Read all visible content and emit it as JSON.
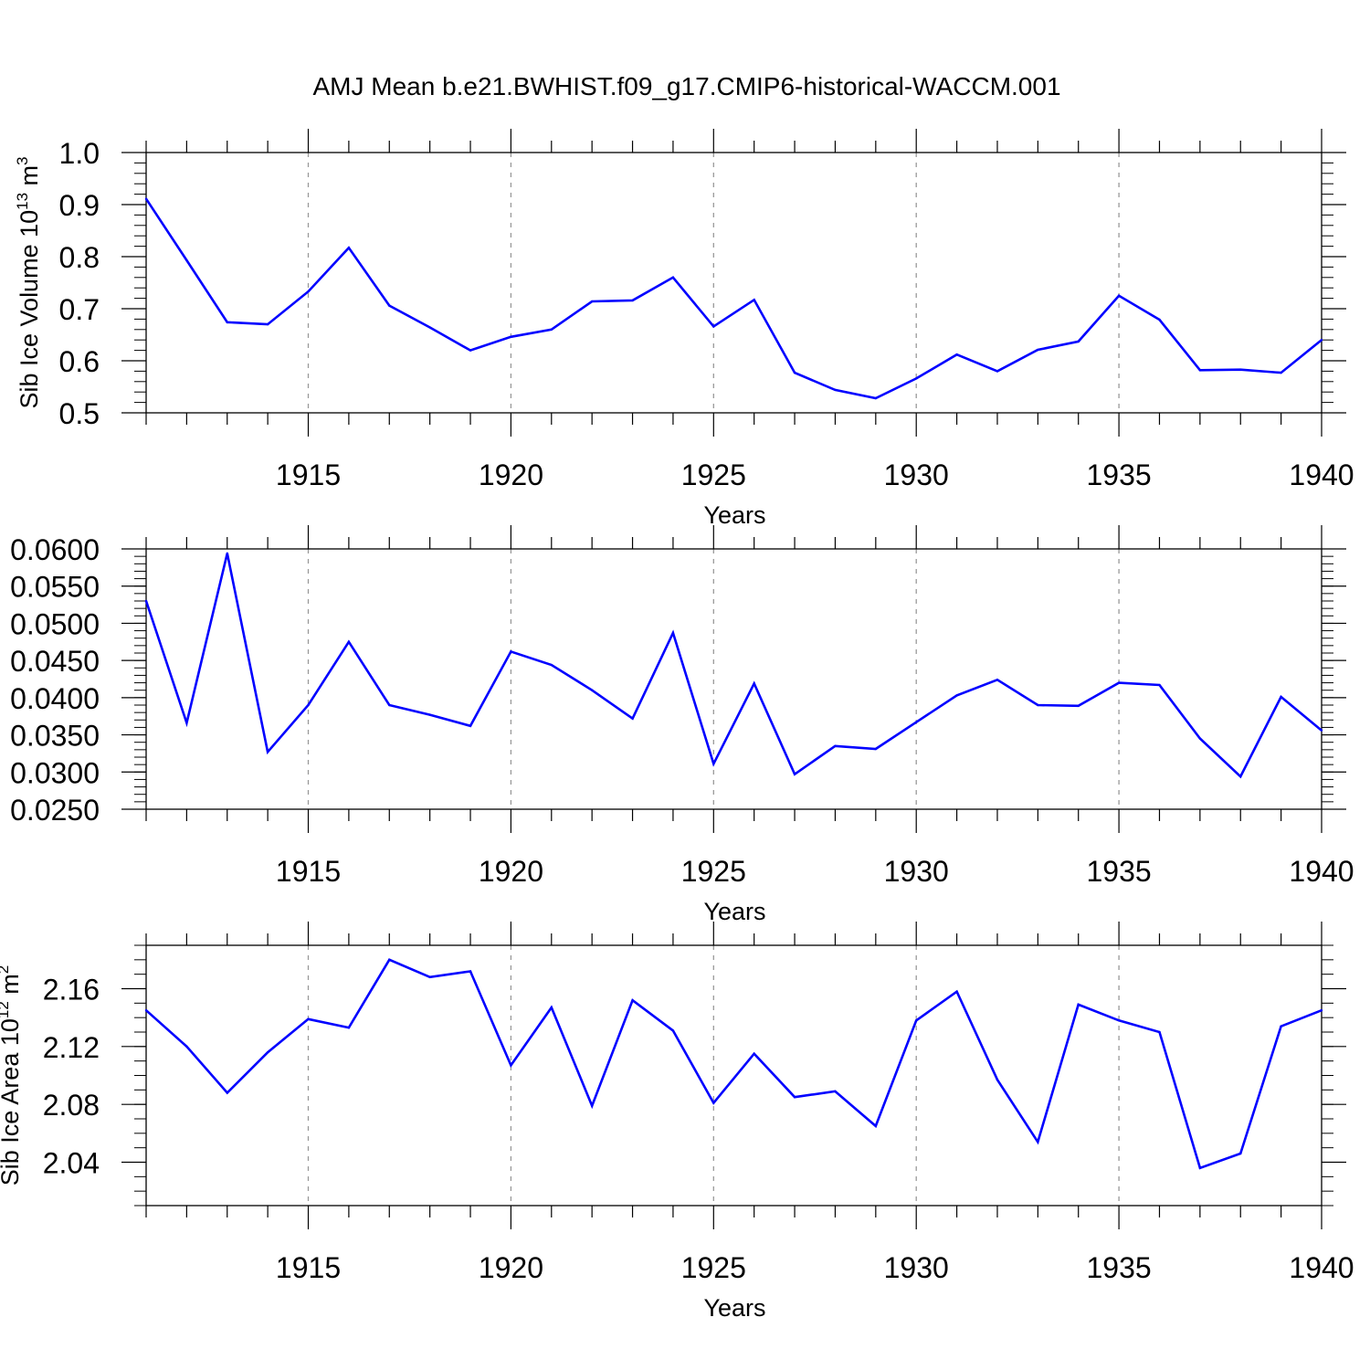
{
  "figure_title": "AMJ Mean b.e21.BWHIST.f09_g17.CMIP6-historical-WACCM.001",
  "colors": {
    "series": "#0000ff",
    "axis": "#000000",
    "gridline": "#999999"
  },
  "chart_data": [
    {
      "type": "line",
      "title": "",
      "xlabel": "Years",
      "ylabel": "Sib Ice Volume 10^13 m^3",
      "ylabel_parts": {
        "main": "Sib Ice Volume 10",
        "exp1": "13",
        "unit": " m",
        "exp2": "3"
      },
      "xlim": [
        1911,
        1940
      ],
      "ylim": [
        0.5,
        1.0
      ],
      "x_ticks": [
        1915,
        1920,
        1925,
        1930,
        1935,
        1940
      ],
      "y_ticks": [
        0.5,
        0.6,
        0.7,
        0.8,
        0.9,
        1.0
      ],
      "y_tick_labels": [
        "0.5",
        "0.6",
        "0.7",
        "0.8",
        "0.9",
        "1.0"
      ],
      "y_minor_step": 0.02,
      "grid": "dashed vertical at major x ticks",
      "x": [
        1911,
        1912,
        1913,
        1914,
        1915,
        1916,
        1917,
        1918,
        1919,
        1920,
        1921,
        1922,
        1923,
        1924,
        1925,
        1926,
        1927,
        1928,
        1929,
        1930,
        1931,
        1932,
        1933,
        1934,
        1935,
        1936,
        1937,
        1938,
        1939,
        1940
      ],
      "values": [
        0.911,
        0.793,
        0.674,
        0.67,
        0.733,
        0.817,
        0.706,
        0.664,
        0.62,
        0.646,
        0.66,
        0.714,
        0.716,
        0.76,
        0.666,
        0.717,
        0.577,
        0.544,
        0.528,
        0.566,
        0.612,
        0.58,
        0.621,
        0.637,
        0.725,
        0.679,
        0.582,
        0.583,
        0.577,
        0.64
      ]
    },
    {
      "type": "line",
      "title": "",
      "xlabel": "Years",
      "ylabel": "",
      "xlim": [
        1911,
        1940
      ],
      "ylim": [
        0.025,
        0.06
      ],
      "x_ticks": [
        1915,
        1920,
        1925,
        1930,
        1935,
        1940
      ],
      "y_ticks": [
        0.025,
        0.03,
        0.035,
        0.04,
        0.045,
        0.05,
        0.055,
        0.06
      ],
      "y_tick_labels": [
        "0.0250",
        "0.0300",
        "0.0350",
        "0.0400",
        "0.0450",
        "0.0500",
        "0.0550",
        "0.0600"
      ],
      "y_minor_step": 0.001,
      "grid": "dashed vertical at major x ticks",
      "x": [
        1911,
        1912,
        1913,
        1914,
        1915,
        1916,
        1917,
        1918,
        1919,
        1920,
        1921,
        1922,
        1923,
        1924,
        1925,
        1926,
        1927,
        1928,
        1929,
        1930,
        1931,
        1932,
        1933,
        1934,
        1935,
        1936,
        1937,
        1938,
        1939,
        1940
      ],
      "values": [
        0.053,
        0.0366,
        0.0594,
        0.0327,
        0.039,
        0.0475,
        0.039,
        0.0377,
        0.0362,
        0.0462,
        0.0444,
        0.041,
        0.0372,
        0.0487,
        0.0311,
        0.0419,
        0.0297,
        0.0335,
        0.0331,
        0.0367,
        0.0403,
        0.0424,
        0.039,
        0.0389,
        0.042,
        0.0417,
        0.0345,
        0.0294,
        0.0401,
        0.0356
      ]
    },
    {
      "type": "line",
      "title": "",
      "xlabel": "Years",
      "ylabel": "Sib Ice Area 10^12 m^2",
      "ylabel_parts": {
        "main": "Sib Ice Area 10",
        "exp1": "12",
        "unit": " m",
        "exp2": "2"
      },
      "xlim": [
        1911,
        1940
      ],
      "ylim": [
        2.01,
        2.19
      ],
      "x_ticks": [
        1915,
        1920,
        1925,
        1930,
        1935,
        1940
      ],
      "y_ticks": [
        2.04,
        2.08,
        2.12,
        2.16
      ],
      "y_tick_labels": [
        "2.04",
        "2.08",
        "2.12",
        "2.16"
      ],
      "y_minor_step": 0.01,
      "grid": "dashed vertical at major x ticks",
      "x": [
        1911,
        1912,
        1913,
        1914,
        1915,
        1916,
        1917,
        1918,
        1919,
        1920,
        1921,
        1922,
        1923,
        1924,
        1925,
        1926,
        1927,
        1928,
        1929,
        1930,
        1931,
        1932,
        1933,
        1934,
        1935,
        1936,
        1937,
        1938,
        1939,
        1940
      ],
      "values": [
        2.145,
        2.12,
        2.088,
        2.116,
        2.139,
        2.133,
        2.18,
        2.168,
        2.172,
        2.107,
        2.147,
        2.079,
        2.152,
        2.131,
        2.081,
        2.115,
        2.085,
        2.089,
        2.065,
        2.138,
        2.158,
        2.097,
        2.054,
        2.149,
        2.138,
        2.13,
        2.036,
        2.046,
        2.134,
        2.145
      ]
    }
  ]
}
